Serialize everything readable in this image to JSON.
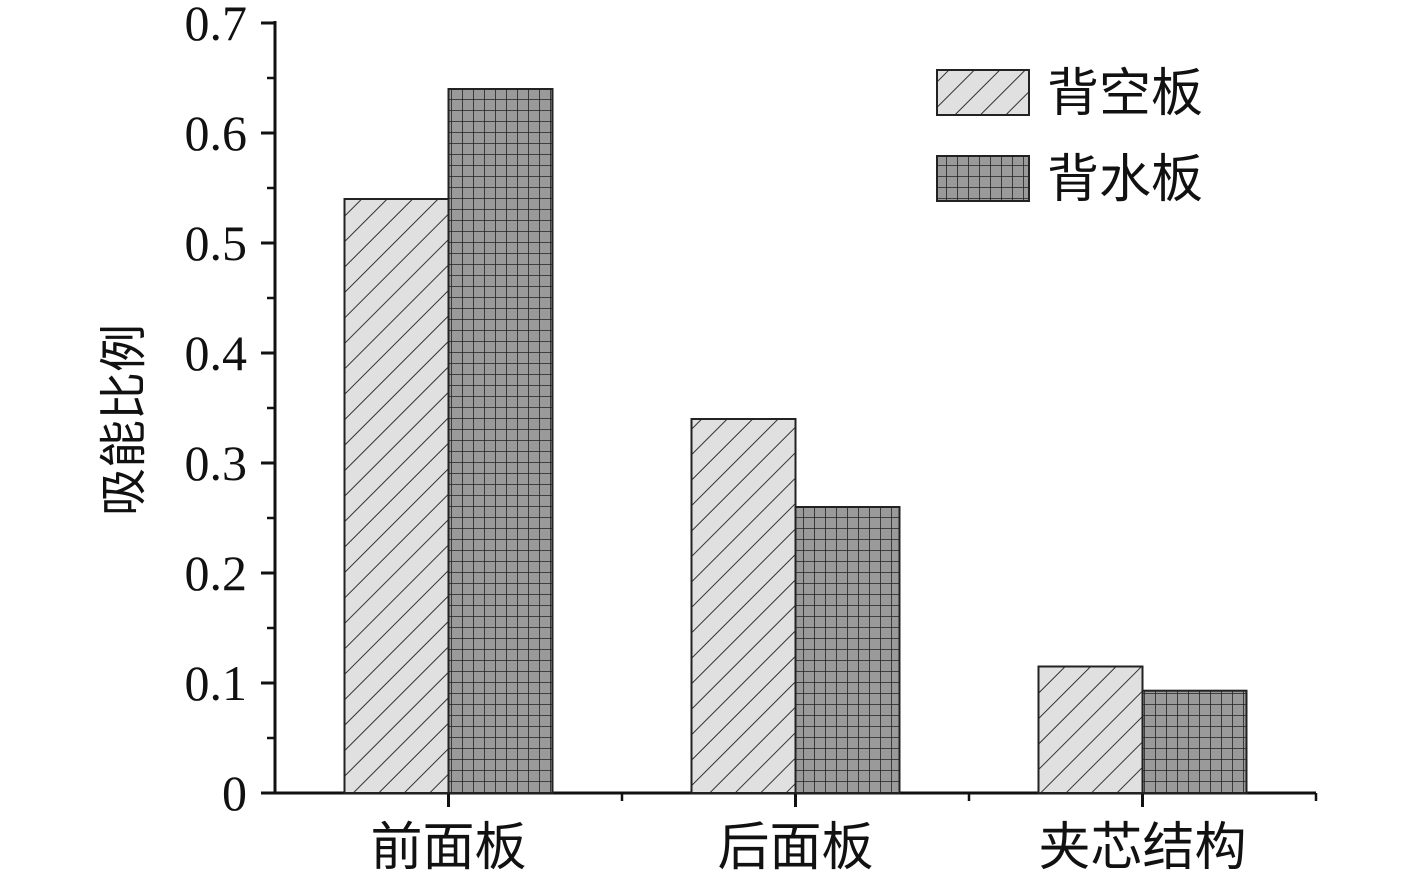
{
  "chart_data": {
    "type": "bar",
    "title": "",
    "xlabel": "",
    "ylabel": "吸能比例",
    "categories": [
      "前面板",
      "后面板",
      "夹芯结构"
    ],
    "series": [
      {
        "name": "背空板",
        "values": [
          0.54,
          0.34,
          0.115
        ],
        "pattern": "diagonal",
        "fill": "#e0e0e0"
      },
      {
        "name": "背水板",
        "values": [
          0.64,
          0.26,
          0.093
        ],
        "pattern": "grid",
        "fill": "#9a9a9a"
      }
    ],
    "ylim": [
      0,
      0.7
    ],
    "yticks": [
      "0",
      "0.1",
      "0.2",
      "0.3",
      "0.4",
      "0.5",
      "0.6",
      "0.7"
    ],
    "legend_position": "top-right",
    "grid": false
  }
}
